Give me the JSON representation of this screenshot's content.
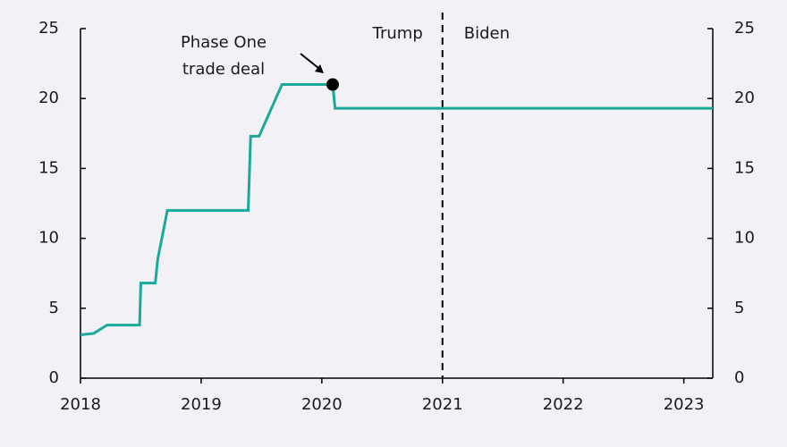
{
  "chart_data": {
    "type": "line",
    "x": [
      2018.0,
      2018.11,
      2018.22,
      2018.49,
      2018.5,
      2018.62,
      2018.64,
      2018.72,
      2019.39,
      2019.41,
      2019.48,
      2019.67,
      2020.09,
      2020.11,
      2023.24
    ],
    "values": [
      3.1,
      3.2,
      3.8,
      3.8,
      6.8,
      6.8,
      8.5,
      12.0,
      12.0,
      17.3,
      17.3,
      21.0,
      21.0,
      19.3,
      19.3
    ],
    "color": "#1aa99a",
    "xlim": [
      2018,
      2023.24
    ],
    "xticks": [
      2018,
      2019,
      2020,
      2021,
      2022,
      2023
    ],
    "ylim": [
      0,
      25
    ],
    "yticks": [
      0,
      5,
      10,
      15,
      20,
      25
    ],
    "y2lim": [
      0,
      25
    ],
    "y2ticks": [
      0,
      5,
      10,
      15,
      20,
      25
    ],
    "highlight": {
      "x": 2020.09,
      "y": 21.0,
      "label": [
        "Phase One",
        "trade deal"
      ]
    },
    "divider": {
      "x": 2021,
      "left_label": "Trump",
      "right_label": "Biden"
    }
  }
}
